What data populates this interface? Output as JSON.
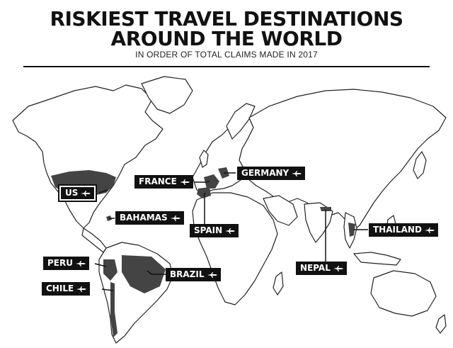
{
  "title_line1": "RISKIEST TRAVEL DESTINATIONS",
  "title_line2": "AROUND THE WORLD",
  "subtitle": "IN ORDER OF TOTAL CLAIMS MADE IN 2017",
  "colors": {
    "ink": "#111111",
    "label_text": "#ffffff",
    "background": "#ffffff"
  },
  "destinations": [
    {
      "key": "us",
      "label": "US",
      "icon": "plane-icon"
    },
    {
      "key": "france",
      "label": "FRANCE",
      "icon": "plane-icon"
    },
    {
      "key": "germany",
      "label": "GERMANY",
      "icon": "plane-icon"
    },
    {
      "key": "bahamas",
      "label": "BAHAMAS",
      "icon": "plane-icon"
    },
    {
      "key": "spain",
      "label": "SPAIN",
      "icon": "plane-icon"
    },
    {
      "key": "thailand",
      "label": "THAILAND",
      "icon": "plane-icon"
    },
    {
      "key": "peru",
      "label": "PERU",
      "icon": "plane-icon"
    },
    {
      "key": "brazil",
      "label": "BRAZIL",
      "icon": "plane-icon"
    },
    {
      "key": "nepal",
      "label": "NEPAL",
      "icon": "plane-icon"
    },
    {
      "key": "chile",
      "label": "CHILE",
      "icon": "plane-icon"
    }
  ]
}
